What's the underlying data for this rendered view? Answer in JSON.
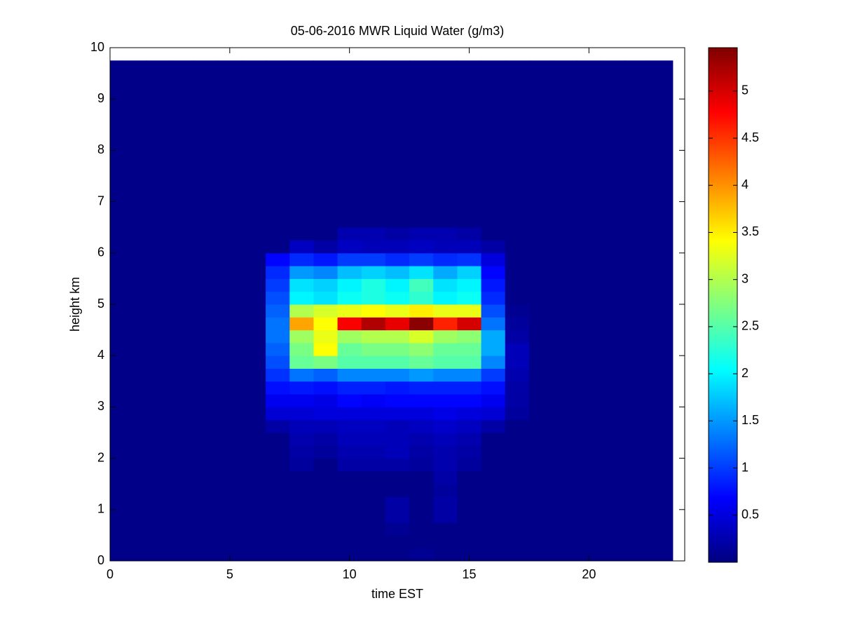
{
  "chart_data": {
    "type": "heatmap",
    "title": "05-06-2016 MWR Liquid Water (g/m3)",
    "xlabel": "time EST",
    "ylabel": "height km",
    "colormap": "jet",
    "clim": [
      0,
      5.46
    ],
    "cticks": [
      0.5,
      1,
      1.5,
      2,
      2.5,
      3,
      3.5,
      4,
      4.5,
      5
    ],
    "xlim": [
      0,
      24
    ],
    "xticks": [
      0,
      5,
      10,
      15,
      20
    ],
    "ylim": [
      0,
      10
    ],
    "yticks": [
      0,
      1,
      2,
      3,
      4,
      5,
      6,
      7,
      8,
      9,
      10
    ],
    "x": [
      0,
      1,
      2,
      3,
      4,
      5,
      6,
      7,
      8,
      9,
      10,
      11,
      12,
      13,
      14,
      15,
      16,
      17,
      18,
      19,
      20,
      21,
      22,
      23
    ],
    "y": [
      0.125,
      0.375,
      0.625,
      0.875,
      1.125,
      1.375,
      1.625,
      1.875,
      2.125,
      2.375,
      2.625,
      2.875,
      3.125,
      3.375,
      3.625,
      3.875,
      4.125,
      4.375,
      4.625,
      4.875,
      5.125,
      5.375,
      5.625,
      5.875,
      6.125,
      6.375,
      6.625,
      6.875,
      7.125,
      7.375,
      7.625,
      7.875,
      8.125,
      8.375,
      8.625,
      8.875,
      9.125,
      9.375,
      9.625
    ],
    "z": [
      [
        0.05,
        0.05,
        0.05,
        0.05,
        0.05,
        0.05,
        0.05,
        0.05,
        0.05,
        0.05,
        0.05,
        0.05,
        0.05,
        0.1,
        0.05,
        0.05,
        0.05,
        0.05,
        0.05,
        0.05,
        0.05,
        0.05,
        0.05,
        0.05
      ],
      [
        0.05,
        0.05,
        0.05,
        0.05,
        0.05,
        0.05,
        0.05,
        0.05,
        0.05,
        0.05,
        0.05,
        0.05,
        0.05,
        0.05,
        0.05,
        0.05,
        0.05,
        0.05,
        0.05,
        0.05,
        0.05,
        0.05,
        0.05,
        0.05
      ],
      [
        0.05,
        0.05,
        0.05,
        0.05,
        0.05,
        0.05,
        0.05,
        0.05,
        0.05,
        0.05,
        0.05,
        0.05,
        0.1,
        0.05,
        0.05,
        0.05,
        0.05,
        0.05,
        0.05,
        0.05,
        0.05,
        0.05,
        0.05,
        0.05
      ],
      [
        0.05,
        0.05,
        0.05,
        0.05,
        0.05,
        0.05,
        0.05,
        0.05,
        0.05,
        0.05,
        0.05,
        0.05,
        0.2,
        0.05,
        0.2,
        0.05,
        0.05,
        0.05,
        0.05,
        0.05,
        0.05,
        0.05,
        0.05,
        0.05
      ],
      [
        0.05,
        0.05,
        0.05,
        0.05,
        0.05,
        0.05,
        0.05,
        0.05,
        0.05,
        0.05,
        0.05,
        0.05,
        0.2,
        0.05,
        0.2,
        0.05,
        0.05,
        0.05,
        0.05,
        0.05,
        0.05,
        0.05,
        0.05,
        0.05
      ],
      [
        0.05,
        0.05,
        0.05,
        0.05,
        0.05,
        0.05,
        0.05,
        0.05,
        0.05,
        0.05,
        0.05,
        0.05,
        0.05,
        0.05,
        0.15,
        0.05,
        0.05,
        0.05,
        0.05,
        0.05,
        0.05,
        0.05,
        0.05,
        0.05
      ],
      [
        0.05,
        0.05,
        0.05,
        0.05,
        0.05,
        0.05,
        0.05,
        0.05,
        0.05,
        0.05,
        0.05,
        0.05,
        0.05,
        0.05,
        0.2,
        0.05,
        0.05,
        0.05,
        0.05,
        0.05,
        0.05,
        0.05,
        0.05,
        0.05
      ],
      [
        0.05,
        0.05,
        0.05,
        0.05,
        0.05,
        0.05,
        0.05,
        0.05,
        0.15,
        0.05,
        0.2,
        0.2,
        0.2,
        0.15,
        0.25,
        0.15,
        0.05,
        0.05,
        0.05,
        0.05,
        0.05,
        0.05,
        0.05,
        0.05
      ],
      [
        0.05,
        0.05,
        0.05,
        0.05,
        0.05,
        0.05,
        0.05,
        0.05,
        0.2,
        0.15,
        0.25,
        0.25,
        0.3,
        0.2,
        0.25,
        0.2,
        0.05,
        0.05,
        0.05,
        0.05,
        0.05,
        0.05,
        0.05,
        0.05
      ],
      [
        0.05,
        0.05,
        0.05,
        0.05,
        0.05,
        0.05,
        0.05,
        0.05,
        0.25,
        0.2,
        0.3,
        0.3,
        0.3,
        0.25,
        0.3,
        0.25,
        0.05,
        0.05,
        0.05,
        0.05,
        0.05,
        0.05,
        0.05,
        0.05
      ],
      [
        0.05,
        0.05,
        0.05,
        0.05,
        0.05,
        0.05,
        0.05,
        0.2,
        0.3,
        0.3,
        0.35,
        0.35,
        0.3,
        0.35,
        0.4,
        0.35,
        0.2,
        0.05,
        0.05,
        0.05,
        0.05,
        0.05,
        0.05,
        0.05
      ],
      [
        0.05,
        0.05,
        0.05,
        0.05,
        0.05,
        0.05,
        0.05,
        0.45,
        0.45,
        0.5,
        0.5,
        0.5,
        0.5,
        0.5,
        0.55,
        0.5,
        0.45,
        0.15,
        0.05,
        0.05,
        0.05,
        0.05,
        0.05,
        0.05
      ],
      [
        0.05,
        0.05,
        0.05,
        0.05,
        0.05,
        0.05,
        0.05,
        0.6,
        0.6,
        0.55,
        0.7,
        0.65,
        0.7,
        0.7,
        0.7,
        0.7,
        0.6,
        0.2,
        0.05,
        0.05,
        0.05,
        0.05,
        0.05,
        0.05
      ],
      [
        0.05,
        0.05,
        0.05,
        0.05,
        0.05,
        0.05,
        0.05,
        0.75,
        0.8,
        0.75,
        0.85,
        0.85,
        0.8,
        0.85,
        0.85,
        0.85,
        0.75,
        0.2,
        0.05,
        0.05,
        0.05,
        0.05,
        0.05,
        0.05
      ],
      [
        0.05,
        0.05,
        0.05,
        0.05,
        0.05,
        0.05,
        0.05,
        0.95,
        1.3,
        1.2,
        1.4,
        1.4,
        1.4,
        1.5,
        1.4,
        1.4,
        1.0,
        0.25,
        0.05,
        0.05,
        0.05,
        0.05,
        0.05,
        0.05
      ],
      [
        0.05,
        0.05,
        0.05,
        0.05,
        0.05,
        0.05,
        0.05,
        1.1,
        2.6,
        2.7,
        2.5,
        2.5,
        2.5,
        2.6,
        2.5,
        2.5,
        1.4,
        0.3,
        0.05,
        0.05,
        0.05,
        0.05,
        0.05,
        0.05
      ],
      [
        0.05,
        0.05,
        0.05,
        0.05,
        0.05,
        0.05,
        0.05,
        1.2,
        2.7,
        3.4,
        2.6,
        2.7,
        2.7,
        2.8,
        2.6,
        2.6,
        1.6,
        0.3,
        0.05,
        0.05,
        0.05,
        0.05,
        0.05,
        0.05
      ],
      [
        0.05,
        0.05,
        0.05,
        0.05,
        0.05,
        0.05,
        0.05,
        1.3,
        2.9,
        3.3,
        2.9,
        3.0,
        3.0,
        3.2,
        2.9,
        2.8,
        1.6,
        0.2,
        0.05,
        0.05,
        0.05,
        0.05,
        0.05,
        0.05
      ],
      [
        0.05,
        0.05,
        0.05,
        0.05,
        0.05,
        0.05,
        0.05,
        1.3,
        3.9,
        3.4,
        4.8,
        5.2,
        4.9,
        5.4,
        4.6,
        5.0,
        1.3,
        0.15,
        0.05,
        0.05,
        0.05,
        0.05,
        0.05,
        0.05
      ],
      [
        0.05,
        0.05,
        0.05,
        0.05,
        0.05,
        0.05,
        0.05,
        1.2,
        3.0,
        3.2,
        3.3,
        3.4,
        3.3,
        3.5,
        3.3,
        3.3,
        1.1,
        0.1,
        0.05,
        0.05,
        0.05,
        0.05,
        0.05,
        0.05
      ],
      [
        0.05,
        0.05,
        0.05,
        0.05,
        0.05,
        0.05,
        0.05,
        1.1,
        2.0,
        1.9,
        2.1,
        2.2,
        2.1,
        2.3,
        2.0,
        2.1,
        0.9,
        0.05,
        0.05,
        0.05,
        0.05,
        0.05,
        0.05,
        0.05
      ],
      [
        0.05,
        0.05,
        0.05,
        0.05,
        0.05,
        0.05,
        0.05,
        1.0,
        1.9,
        1.8,
        2.0,
        2.2,
        2.0,
        2.4,
        1.9,
        2.0,
        0.8,
        0.05,
        0.05,
        0.05,
        0.05,
        0.05,
        0.05,
        0.05
      ],
      [
        0.05,
        0.05,
        0.05,
        0.05,
        0.05,
        0.05,
        0.05,
        0.9,
        1.5,
        1.4,
        1.7,
        1.8,
        1.7,
        1.9,
        1.6,
        1.8,
        0.7,
        0.05,
        0.05,
        0.05,
        0.05,
        0.05,
        0.05,
        0.05
      ],
      [
        0.05,
        0.05,
        0.05,
        0.05,
        0.05,
        0.05,
        0.05,
        0.7,
        0.9,
        0.8,
        1.0,
        1.0,
        0.9,
        1.0,
        0.9,
        0.95,
        0.5,
        0.05,
        0.05,
        0.05,
        0.05,
        0.05,
        0.05,
        0.05
      ],
      [
        0.05,
        0.05,
        0.05,
        0.05,
        0.05,
        0.05,
        0.05,
        0.05,
        0.35,
        0.2,
        0.35,
        0.3,
        0.3,
        0.35,
        0.3,
        0.3,
        0.2,
        0.05,
        0.05,
        0.05,
        0.05,
        0.05,
        0.05,
        0.05
      ],
      [
        0.05,
        0.05,
        0.05,
        0.05,
        0.05,
        0.05,
        0.05,
        0.05,
        0.05,
        0.05,
        0.25,
        0.25,
        0.2,
        0.25,
        0.25,
        0.2,
        0.05,
        0.05,
        0.05,
        0.05,
        0.05,
        0.05,
        0.05,
        0.05
      ],
      [
        0.05,
        0.05,
        0.05,
        0.05,
        0.05,
        0.05,
        0.05,
        0.05,
        0.05,
        0.05,
        0.05,
        0.05,
        0.05,
        0.05,
        0.05,
        0.05,
        0.05,
        0.05,
        0.05,
        0.05,
        0.05,
        0.05,
        0.05,
        0.05
      ],
      [
        0.05,
        0.05,
        0.05,
        0.05,
        0.05,
        0.05,
        0.05,
        0.05,
        0.05,
        0.05,
        0.05,
        0.05,
        0.05,
        0.05,
        0.05,
        0.05,
        0.05,
        0.05,
        0.05,
        0.05,
        0.05,
        0.05,
        0.05,
        0.05
      ],
      [
        0.05,
        0.05,
        0.05,
        0.05,
        0.05,
        0.05,
        0.05,
        0.05,
        0.05,
        0.05,
        0.05,
        0.05,
        0.05,
        0.05,
        0.05,
        0.05,
        0.05,
        0.05,
        0.05,
        0.05,
        0.05,
        0.05,
        0.05,
        0.05
      ],
      [
        0.05,
        0.05,
        0.05,
        0.05,
        0.05,
        0.05,
        0.05,
        0.05,
        0.05,
        0.05,
        0.05,
        0.05,
        0.05,
        0.05,
        0.05,
        0.05,
        0.05,
        0.05,
        0.05,
        0.05,
        0.05,
        0.05,
        0.05,
        0.05
      ],
      [
        0.05,
        0.05,
        0.05,
        0.05,
        0.05,
        0.05,
        0.05,
        0.05,
        0.05,
        0.05,
        0.05,
        0.05,
        0.05,
        0.05,
        0.05,
        0.05,
        0.05,
        0.05,
        0.05,
        0.05,
        0.05,
        0.05,
        0.05,
        0.05
      ],
      [
        0.05,
        0.05,
        0.05,
        0.05,
        0.05,
        0.05,
        0.05,
        0.05,
        0.05,
        0.05,
        0.05,
        0.05,
        0.05,
        0.05,
        0.05,
        0.05,
        0.05,
        0.05,
        0.05,
        0.05,
        0.05,
        0.05,
        0.05,
        0.05
      ],
      [
        0.05,
        0.05,
        0.05,
        0.05,
        0.05,
        0.05,
        0.05,
        0.05,
        0.05,
        0.05,
        0.05,
        0.05,
        0.05,
        0.05,
        0.05,
        0.05,
        0.05,
        0.05,
        0.05,
        0.05,
        0.05,
        0.05,
        0.05,
        0.05
      ],
      [
        0.05,
        0.05,
        0.05,
        0.05,
        0.05,
        0.05,
        0.05,
        0.05,
        0.05,
        0.05,
        0.05,
        0.05,
        0.05,
        0.05,
        0.05,
        0.05,
        0.05,
        0.05,
        0.05,
        0.05,
        0.05,
        0.05,
        0.05,
        0.05
      ],
      [
        0.05,
        0.05,
        0.05,
        0.05,
        0.05,
        0.05,
        0.05,
        0.05,
        0.05,
        0.05,
        0.05,
        0.05,
        0.05,
        0.05,
        0.05,
        0.05,
        0.05,
        0.05,
        0.05,
        0.05,
        0.05,
        0.05,
        0.05,
        0.05
      ],
      [
        0.05,
        0.05,
        0.05,
        0.05,
        0.05,
        0.05,
        0.05,
        0.05,
        0.05,
        0.05,
        0.05,
        0.05,
        0.05,
        0.05,
        0.05,
        0.05,
        0.05,
        0.05,
        0.05,
        0.05,
        0.05,
        0.05,
        0.05,
        0.05
      ],
      [
        0.05,
        0.05,
        0.05,
        0.05,
        0.05,
        0.05,
        0.05,
        0.05,
        0.05,
        0.05,
        0.05,
        0.05,
        0.05,
        0.05,
        0.05,
        0.05,
        0.05,
        0.05,
        0.05,
        0.05,
        0.05,
        0.05,
        0.05,
        0.05
      ],
      [
        0.05,
        0.05,
        0.05,
        0.05,
        0.05,
        0.05,
        0.05,
        0.05,
        0.05,
        0.05,
        0.05,
        0.05,
        0.05,
        0.05,
        0.05,
        0.05,
        0.05,
        0.05,
        0.05,
        0.05,
        0.05,
        0.05,
        0.05,
        0.05
      ],
      [
        0.05,
        0.05,
        0.05,
        0.05,
        0.05,
        0.05,
        0.05,
        0.05,
        0.05,
        0.05,
        0.05,
        0.05,
        0.05,
        0.05,
        0.05,
        0.05,
        0.05,
        0.05,
        0.05,
        0.05,
        0.05,
        0.05,
        0.05,
        0.05
      ]
    ]
  }
}
